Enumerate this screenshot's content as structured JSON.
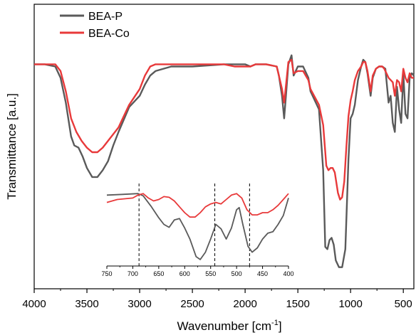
{
  "chart_data": [
    {
      "type": "line",
      "title": "",
      "xlabel": "Wavenumber [cm",
      "xlabel_superscript": "-1",
      "xlabel_suffix": "]",
      "ylabel": "Transmittance [a.u.]",
      "xlim": [
        4000,
        400
      ],
      "x_reversed": true,
      "x_ticks": [
        4000,
        3500,
        3000,
        2500,
        2000,
        1500,
        1000,
        500
      ],
      "y_tick_labels": false,
      "legend": "top-left",
      "grid": false,
      "series": [
        {
          "name": "BEA-P",
          "color": "#5a5a5a",
          "points": [
            [
              4000,
              0.92
            ],
            [
              3900,
              0.92
            ],
            [
              3800,
              0.91
            ],
            [
              3750,
              0.86
            ],
            [
              3700,
              0.75
            ],
            [
              3650,
              0.6
            ],
            [
              3620,
              0.56
            ],
            [
              3580,
              0.55
            ],
            [
              3540,
              0.51
            ],
            [
              3500,
              0.46
            ],
            [
              3450,
              0.42
            ],
            [
              3400,
              0.42
            ],
            [
              3350,
              0.45
            ],
            [
              3300,
              0.49
            ],
            [
              3250,
              0.56
            ],
            [
              3200,
              0.62
            ],
            [
              3100,
              0.73
            ],
            [
              3000,
              0.78
            ],
            [
              2950,
              0.83
            ],
            [
              2900,
              0.87
            ],
            [
              2850,
              0.89
            ],
            [
              2700,
              0.91
            ],
            [
              2500,
              0.91
            ],
            [
              2200,
              0.92
            ],
            [
              2100,
              0.92
            ],
            [
              2000,
              0.92
            ],
            [
              1950,
              0.91
            ],
            [
              1900,
              0.92
            ],
            [
              1800,
              0.92
            ],
            [
              1700,
              0.91
            ],
            [
              1680,
              0.87
            ],
            [
              1650,
              0.78
            ],
            [
              1630,
              0.68
            ],
            [
              1610,
              0.8
            ],
            [
              1590,
              0.92
            ],
            [
              1560,
              0.96
            ],
            [
              1540,
              0.87
            ],
            [
              1500,
              0.91
            ],
            [
              1450,
              0.91
            ],
            [
              1400,
              0.86
            ],
            [
              1380,
              0.8
            ],
            [
              1300,
              0.72
            ],
            [
              1260,
              0.45
            ],
            [
              1240,
              0.11
            ],
            [
              1220,
              0.1
            ],
            [
              1200,
              0.14
            ],
            [
              1180,
              0.15
            ],
            [
              1160,
              0.12
            ],
            [
              1140,
              0.05
            ],
            [
              1110,
              0.02
            ],
            [
              1080,
              0.02
            ],
            [
              1050,
              0.1
            ],
            [
              1020,
              0.5
            ],
            [
              1000,
              0.68
            ],
            [
              980,
              0.7
            ],
            [
              960,
              0.74
            ],
            [
              930,
              0.85
            ],
            [
              900,
              0.91
            ],
            [
              880,
              0.94
            ],
            [
              860,
              0.93
            ],
            [
              840,
              0.88
            ],
            [
              810,
              0.78
            ],
            [
              790,
              0.86
            ],
            [
              760,
              0.9
            ],
            [
              730,
              0.91
            ],
            [
              700,
              0.91
            ],
            [
              670,
              0.9
            ],
            [
              640,
              0.75
            ],
            [
              620,
              0.78
            ],
            [
              600,
              0.66
            ],
            [
              580,
              0.62
            ],
            [
              560,
              0.82
            ],
            [
              540,
              0.72
            ],
            [
              520,
              0.66
            ],
            [
              500,
              0.88
            ],
            [
              480,
              0.7
            ],
            [
              460,
              0.68
            ],
            [
              440,
              0.86
            ],
            [
              420,
              0.88
            ],
            [
              400,
              0.87
            ]
          ]
        },
        {
          "name": "BEA-Co",
          "color": "#e8393a",
          "points": [
            [
              4000,
              0.92
            ],
            [
              3900,
              0.92
            ],
            [
              3800,
              0.92
            ],
            [
              3750,
              0.89
            ],
            [
              3700,
              0.8
            ],
            [
              3650,
              0.68
            ],
            [
              3600,
              0.62
            ],
            [
              3550,
              0.58
            ],
            [
              3500,
              0.55
            ],
            [
              3450,
              0.53
            ],
            [
              3400,
              0.53
            ],
            [
              3350,
              0.55
            ],
            [
              3300,
              0.58
            ],
            [
              3250,
              0.61
            ],
            [
              3200,
              0.64
            ],
            [
              3150,
              0.69
            ],
            [
              3100,
              0.74
            ],
            [
              3000,
              0.81
            ],
            [
              2950,
              0.87
            ],
            [
              2900,
              0.91
            ],
            [
              2850,
              0.92
            ],
            [
              2700,
              0.92
            ],
            [
              2500,
              0.92
            ],
            [
              2200,
              0.92
            ],
            [
              2100,
              0.91
            ],
            [
              2000,
              0.91
            ],
            [
              1950,
              0.91
            ],
            [
              1900,
              0.92
            ],
            [
              1800,
              0.92
            ],
            [
              1700,
              0.91
            ],
            [
              1680,
              0.87
            ],
            [
              1650,
              0.81
            ],
            [
              1630,
              0.75
            ],
            [
              1610,
              0.84
            ],
            [
              1590,
              0.93
            ],
            [
              1560,
              0.94
            ],
            [
              1540,
              0.88
            ],
            [
              1500,
              0.89
            ],
            [
              1450,
              0.89
            ],
            [
              1400,
              0.85
            ],
            [
              1380,
              0.81
            ],
            [
              1300,
              0.74
            ],
            [
              1260,
              0.65
            ],
            [
              1230,
              0.47
            ],
            [
              1210,
              0.45
            ],
            [
              1190,
              0.46
            ],
            [
              1170,
              0.46
            ],
            [
              1150,
              0.44
            ],
            [
              1120,
              0.35
            ],
            [
              1100,
              0.32
            ],
            [
              1080,
              0.33
            ],
            [
              1060,
              0.4
            ],
            [
              1040,
              0.55
            ],
            [
              1020,
              0.69
            ],
            [
              1000,
              0.76
            ],
            [
              980,
              0.8
            ],
            [
              960,
              0.85
            ],
            [
              930,
              0.89
            ],
            [
              900,
              0.91
            ],
            [
              880,
              0.93
            ],
            [
              860,
              0.93
            ],
            [
              840,
              0.89
            ],
            [
              810,
              0.8
            ],
            [
              790,
              0.87
            ],
            [
              760,
              0.9
            ],
            [
              730,
              0.91
            ],
            [
              700,
              0.91
            ],
            [
              680,
              0.9
            ],
            [
              640,
              0.86
            ],
            [
              600,
              0.84
            ],
            [
              580,
              0.78
            ],
            [
              560,
              0.85
            ],
            [
              540,
              0.84
            ],
            [
              520,
              0.8
            ],
            [
              500,
              0.9
            ],
            [
              480,
              0.86
            ],
            [
              460,
              0.84
            ],
            [
              440,
              0.88
            ],
            [
              420,
              0.86
            ],
            [
              400,
              0.86
            ]
          ]
        }
      ]
    },
    {
      "type": "line",
      "role": "inset",
      "title": "",
      "xlim": [
        750,
        400
      ],
      "x_reversed": true,
      "x_ticks": [
        750,
        700,
        650,
        600,
        550,
        500,
        450,
        400
      ],
      "reference_lines_x": [
        688,
        542,
        475
      ],
      "series": [
        {
          "name": "BEA-P",
          "color": "#5a5a5a",
          "points": [
            [
              750,
              0.9
            ],
            [
              720,
              0.91
            ],
            [
              690,
              0.92
            ],
            [
              680,
              0.89
            ],
            [
              665,
              0.75
            ],
            [
              650,
              0.59
            ],
            [
              640,
              0.5
            ],
            [
              630,
              0.46
            ],
            [
              620,
              0.56
            ],
            [
              610,
              0.58
            ],
            [
              600,
              0.45
            ],
            [
              590,
              0.3
            ],
            [
              578,
              0.06
            ],
            [
              570,
              0.02
            ],
            [
              560,
              0.12
            ],
            [
              550,
              0.3
            ],
            [
              540,
              0.5
            ],
            [
              530,
              0.44
            ],
            [
              520,
              0.3
            ],
            [
              510,
              0.45
            ],
            [
              500,
              0.7
            ],
            [
              495,
              0.73
            ],
            [
              488,
              0.5
            ],
            [
              478,
              0.2
            ],
            [
              470,
              0.12
            ],
            [
              460,
              0.18
            ],
            [
              450,
              0.3
            ],
            [
              440,
              0.38
            ],
            [
              430,
              0.4
            ],
            [
              420,
              0.5
            ],
            [
              410,
              0.62
            ],
            [
              400,
              0.86
            ]
          ]
        },
        {
          "name": "BEA-Co",
          "color": "#e8393a",
          "points": [
            [
              750,
              0.8
            ],
            [
              730,
              0.84
            ],
            [
              700,
              0.86
            ],
            [
              690,
              0.9
            ],
            [
              680,
              0.92
            ],
            [
              670,
              0.86
            ],
            [
              660,
              0.82
            ],
            [
              650,
              0.84
            ],
            [
              640,
              0.88
            ],
            [
              630,
              0.87
            ],
            [
              620,
              0.82
            ],
            [
              610,
              0.74
            ],
            [
              600,
              0.66
            ],
            [
              590,
              0.6
            ],
            [
              580,
              0.6
            ],
            [
              570,
              0.66
            ],
            [
              560,
              0.74
            ],
            [
              550,
              0.78
            ],
            [
              540,
              0.8
            ],
            [
              530,
              0.78
            ],
            [
              520,
              0.84
            ],
            [
              510,
              0.9
            ],
            [
              500,
              0.92
            ],
            [
              490,
              0.86
            ],
            [
              480,
              0.7
            ],
            [
              470,
              0.63
            ],
            [
              460,
              0.63
            ],
            [
              450,
              0.66
            ],
            [
              440,
              0.66
            ],
            [
              430,
              0.7
            ],
            [
              420,
              0.76
            ],
            [
              410,
              0.84
            ],
            [
              400,
              0.92
            ]
          ]
        }
      ]
    }
  ]
}
